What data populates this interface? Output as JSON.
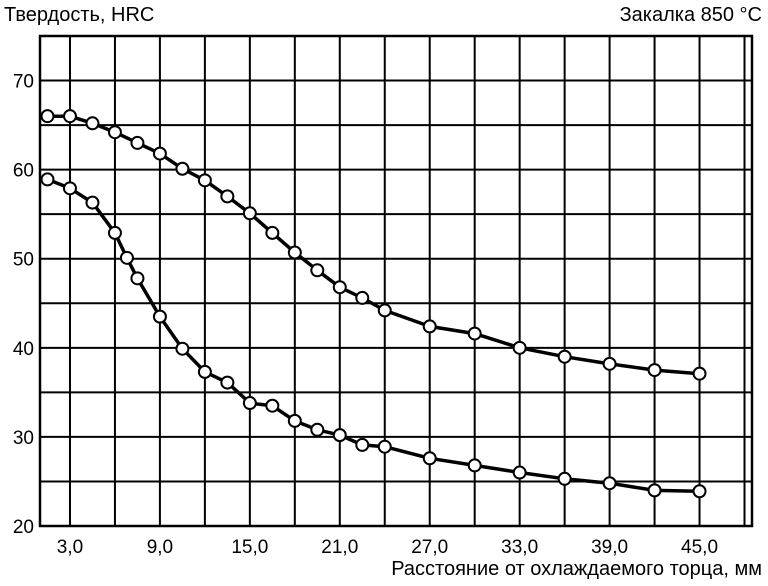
{
  "chart_data": {
    "type": "line",
    "title": "Закалка 850 °C",
    "ylabel": "Твердость, HRC",
    "xlabel": "Расстояние от охлаждаемого торца, мм",
    "xlim": [
      1.0,
      48.5
    ],
    "ylim": [
      20,
      75
    ],
    "xticks": [
      3.0,
      9.0,
      15.0,
      21.0,
      27.0,
      33.0,
      39.0,
      45.0
    ],
    "xtick_labels": [
      "3,0",
      "9,0",
      "15,0",
      "21,0",
      "27,0",
      "33,0",
      "39,0",
      "45,0"
    ],
    "yticks": [
      20,
      30,
      40,
      50,
      60,
      70
    ],
    "ytick_labels": [
      "20",
      "30",
      "40",
      "50",
      "60",
      "70"
    ],
    "grid": true,
    "series": [
      {
        "x": [
          1.5,
          3.0,
          4.5,
          6.0,
          7.5,
          9.0,
          10.5,
          12.0,
          13.5,
          15.0,
          16.5,
          18.0,
          19.5,
          21.0,
          22.5,
          24.0,
          27.0,
          30.0,
          33.0,
          36.0,
          39.0,
          42.0,
          45.0
        ],
        "y": [
          66,
          66,
          65.2,
          64.2,
          63,
          61.8,
          60.1,
          58.8,
          57,
          55.1,
          52.9,
          50.7,
          48.7,
          46.8,
          45.6,
          44.2,
          42.4,
          41.6,
          40.0,
          39.0,
          38.2,
          37.5,
          37.1
        ]
      },
      {
        "x": [
          1.5,
          3.0,
          4.5,
          6.0,
          6.8,
          7.5,
          9.0,
          10.5,
          12.0,
          13.5,
          15.0,
          16.5,
          18.0,
          19.5,
          21.0,
          22.5,
          24.0,
          27.0,
          30.0,
          33.0,
          36.0,
          39.0,
          42.0,
          45.0
        ],
        "y": [
          58.9,
          57.9,
          56.3,
          52.9,
          50.1,
          47.8,
          43.5,
          39.9,
          37.3,
          36.1,
          33.8,
          33.5,
          31.8,
          30.8,
          30.2,
          29.1,
          28.9,
          27.6,
          26.8,
          26.0,
          25.3,
          24.8,
          24.0,
          23.9
        ]
      }
    ]
  }
}
